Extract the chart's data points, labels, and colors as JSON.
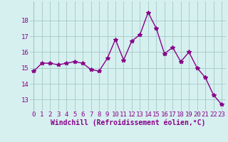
{
  "x": [
    0,
    1,
    2,
    3,
    4,
    5,
    6,
    7,
    8,
    9,
    10,
    11,
    12,
    13,
    14,
    15,
    16,
    17,
    18,
    19,
    20,
    21,
    22,
    23
  ],
  "y": [
    14.8,
    15.3,
    15.3,
    15.2,
    15.3,
    15.4,
    15.3,
    14.9,
    14.8,
    15.6,
    16.8,
    15.5,
    16.7,
    17.1,
    18.5,
    17.5,
    15.9,
    16.3,
    15.4,
    16.0,
    15.0,
    14.4,
    13.3,
    12.7
  ],
  "line_color": "#880088",
  "marker": "*",
  "marker_size": 4,
  "bg_color": "#d6f0f0",
  "grid_color": "#aacccc",
  "xlabel": "Windchill (Refroidissement éolien,°C)",
  "xlabel_color": "#880088",
  "xlabel_fontsize": 7,
  "tick_color": "#880088",
  "tick_fontsize": 6.5,
  "ytick_labels": [
    13,
    14,
    15,
    16,
    17,
    18
  ],
  "ylim": [
    12.3,
    19.2
  ],
  "xlim": [
    -0.5,
    23.5
  ],
  "line_width": 1.0
}
